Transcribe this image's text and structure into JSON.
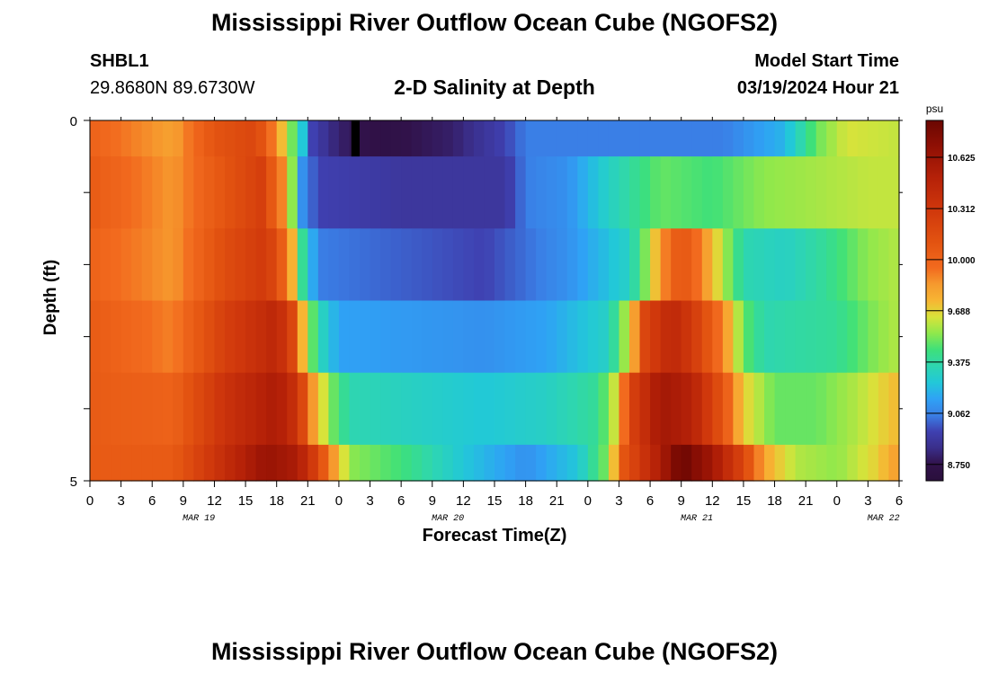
{
  "header": {
    "title": "Mississippi River Outflow Ocean Cube (NGOFS2)",
    "station": "SHBL1",
    "coords": "29.8680N  89.6730W",
    "subtitle": "2-D Salinity at Depth",
    "model_start_label": "Model Start Time",
    "model_start_value": "03/19/2024 Hour 21"
  },
  "footer": {
    "title": "Mississippi River Outflow Ocean Cube (NGOFS2)"
  },
  "chart_data": {
    "type": "heatmap",
    "title": "2-D Salinity at Depth",
    "xlabel": "Forecast Time(Z)",
    "ylabel": "Depth (ft)",
    "colorbar_label": "psu",
    "x_start_hour": 0,
    "x_end_hour": 78,
    "x_ticks": [
      "0",
      "3",
      "6",
      "9",
      "12",
      "15",
      "18",
      "21",
      "0",
      "3",
      "6",
      "9",
      "12",
      "15",
      "18",
      "21",
      "0",
      "3",
      "6",
      "9",
      "12",
      "15",
      "18",
      "21",
      "0",
      "3",
      "6"
    ],
    "day_labels": [
      {
        "label": "MAR 19",
        "hour": 10.5
      },
      {
        "label": "MAR 20",
        "hour": 34.5
      },
      {
        "label": "MAR 21",
        "hour": 58.5
      },
      {
        "label": "MAR 22",
        "hour": 76.5
      }
    ],
    "y_ticks": [
      "0",
      "5"
    ],
    "ylim": [
      0,
      5
    ],
    "colorbar_ticks": [
      "10.625",
      "10.312",
      "10.000",
      "9.688",
      "9.375",
      "9.062",
      "8.750"
    ],
    "colorbar_range": [
      8.65,
      10.85
    ],
    "colors": {
      "8.65": "#2a0f3c",
      "8.75": "#31124a",
      "8.85": "#3a2e8a",
      "8.95": "#3f40b0",
      "9.05": "#3a7fe6",
      "9.15": "#2fa2f5",
      "9.25": "#22c8d8",
      "9.35": "#2ed6b0",
      "9.45": "#3ee07a",
      "9.55": "#8fe84c",
      "9.65": "#d8e33a",
      "9.75": "#f7b533",
      "9.85": "#f69a2e",
      "9.95": "#f26a1e",
      "10.1": "#e35411",
      "10.3": "#d0380c",
      "10.5": "#b52108",
      "10.7": "#8e0f04",
      "10.85": "#6a0702"
    },
    "depth_layers": [
      {
        "depth_top": 0,
        "depth_bottom": 0.5,
        "keys": [
          {
            "h": 0,
            "v": 10.0
          },
          {
            "h": 8,
            "v": 9.82
          },
          {
            "h": 12,
            "v": 10.1
          },
          {
            "h": 16,
            "v": 10.2
          },
          {
            "h": 18,
            "v": 9.85
          },
          {
            "h": 20,
            "v": 9.4
          },
          {
            "h": 21.5,
            "v": 8.95
          },
          {
            "h": 24,
            "v": 8.8
          },
          {
            "h": 28,
            "v": 8.72
          },
          {
            "h": 35,
            "v": 8.8
          },
          {
            "h": 40,
            "v": 8.95
          },
          {
            "h": 42,
            "v": 9.05
          },
          {
            "h": 50,
            "v": 9.05
          },
          {
            "h": 61,
            "v": 9.05
          },
          {
            "h": 67,
            "v": 9.2
          },
          {
            "h": 70,
            "v": 9.5
          },
          {
            "h": 73,
            "v": 9.65
          },
          {
            "h": 78,
            "v": 9.62
          }
        ]
      },
      {
        "depth_top": 0.5,
        "depth_bottom": 1.5,
        "keys": [
          {
            "h": 0,
            "v": 10.05
          },
          {
            "h": 8,
            "v": 9.85
          },
          {
            "h": 13,
            "v": 10.1
          },
          {
            "h": 16.5,
            "v": 10.25
          },
          {
            "h": 18.5,
            "v": 9.9
          },
          {
            "h": 19.5,
            "v": 9.55
          },
          {
            "h": 20.5,
            "v": 9.1
          },
          {
            "h": 22,
            "v": 8.95
          },
          {
            "h": 30,
            "v": 8.9
          },
          {
            "h": 40,
            "v": 8.9
          },
          {
            "h": 42,
            "v": 9.05
          },
          {
            "h": 46,
            "v": 9.1
          },
          {
            "h": 50,
            "v": 9.3
          },
          {
            "h": 55,
            "v": 9.5
          },
          {
            "h": 60,
            "v": 9.45
          },
          {
            "h": 65,
            "v": 9.55
          },
          {
            "h": 70,
            "v": 9.58
          },
          {
            "h": 75,
            "v": 9.62
          },
          {
            "h": 78,
            "v": 9.62
          }
        ]
      },
      {
        "depth_top": 1.5,
        "depth_bottom": 2.5,
        "keys": [
          {
            "h": 0,
            "v": 10.0
          },
          {
            "h": 8,
            "v": 9.85
          },
          {
            "h": 13,
            "v": 10.15
          },
          {
            "h": 17,
            "v": 10.3
          },
          {
            "h": 19,
            "v": 9.95
          },
          {
            "h": 20.5,
            "v": 9.4
          },
          {
            "h": 22,
            "v": 9.05
          },
          {
            "h": 30,
            "v": 9.0
          },
          {
            "h": 38,
            "v": 8.95
          },
          {
            "h": 46,
            "v": 9.1
          },
          {
            "h": 52,
            "v": 9.3
          },
          {
            "h": 54,
            "v": 9.6
          },
          {
            "h": 55,
            "v": 9.85
          },
          {
            "h": 57,
            "v": 10.1
          },
          {
            "h": 59,
            "v": 9.9
          },
          {
            "h": 61,
            "v": 9.6
          },
          {
            "h": 63,
            "v": 9.35
          },
          {
            "h": 67,
            "v": 9.3
          },
          {
            "h": 71,
            "v": 9.4
          },
          {
            "h": 75,
            "v": 9.55
          },
          {
            "h": 78,
            "v": 9.6
          }
        ]
      },
      {
        "depth_top": 2.5,
        "depth_bottom": 3.5,
        "keys": [
          {
            "h": 0,
            "v": 10.05
          },
          {
            "h": 8,
            "v": 9.9
          },
          {
            "h": 13,
            "v": 10.25
          },
          {
            "h": 18,
            "v": 10.45
          },
          {
            "h": 19.5,
            "v": 10.2
          },
          {
            "h": 20.5,
            "v": 9.75
          },
          {
            "h": 22,
            "v": 9.35
          },
          {
            "h": 24,
            "v": 9.15
          },
          {
            "h": 38,
            "v": 9.1
          },
          {
            "h": 44,
            "v": 9.15
          },
          {
            "h": 50,
            "v": 9.3
          },
          {
            "h": 52,
            "v": 9.65
          },
          {
            "h": 53.5,
            "v": 10.2
          },
          {
            "h": 56,
            "v": 10.45
          },
          {
            "h": 58,
            "v": 10.3
          },
          {
            "h": 61,
            "v": 9.9
          },
          {
            "h": 63,
            "v": 9.5
          },
          {
            "h": 65,
            "v": 9.35
          },
          {
            "h": 72,
            "v": 9.4
          },
          {
            "h": 76,
            "v": 9.55
          },
          {
            "h": 78,
            "v": 9.6
          }
        ]
      },
      {
        "depth_top": 3.5,
        "depth_bottom": 4.5,
        "keys": [
          {
            "h": 0,
            "v": 10.05
          },
          {
            "h": 8,
            "v": 10.0
          },
          {
            "h": 13,
            "v": 10.35
          },
          {
            "h": 18,
            "v": 10.55
          },
          {
            "h": 20,
            "v": 10.35
          },
          {
            "h": 21.5,
            "v": 9.85
          },
          {
            "h": 23,
            "v": 9.55
          },
          {
            "h": 25,
            "v": 9.35
          },
          {
            "h": 38,
            "v": 9.25
          },
          {
            "h": 44,
            "v": 9.3
          },
          {
            "h": 49,
            "v": 9.4
          },
          {
            "h": 51,
            "v": 9.7
          },
          {
            "h": 52,
            "v": 10.2
          },
          {
            "h": 55,
            "v": 10.6
          },
          {
            "h": 58,
            "v": 10.5
          },
          {
            "h": 61,
            "v": 10.1
          },
          {
            "h": 63,
            "v": 9.7
          },
          {
            "h": 66,
            "v": 9.5
          },
          {
            "h": 70,
            "v": 9.5
          },
          {
            "h": 74,
            "v": 9.6
          },
          {
            "h": 78,
            "v": 9.75
          }
        ]
      },
      {
        "depth_top": 4.5,
        "depth_bottom": 5.0,
        "keys": [
          {
            "h": 0,
            "v": 10.05
          },
          {
            "h": 8,
            "v": 10.05
          },
          {
            "h": 13,
            "v": 10.4
          },
          {
            "h": 17,
            "v": 10.65
          },
          {
            "h": 20,
            "v": 10.55
          },
          {
            "h": 22,
            "v": 10.2
          },
          {
            "h": 23,
            "v": 9.95
          },
          {
            "h": 25,
            "v": 9.55
          },
          {
            "h": 30,
            "v": 9.45
          },
          {
            "h": 36,
            "v": 9.25
          },
          {
            "h": 42,
            "v": 9.1
          },
          {
            "h": 47,
            "v": 9.25
          },
          {
            "h": 50,
            "v": 9.55
          },
          {
            "h": 51.5,
            "v": 10.1
          },
          {
            "h": 55,
            "v": 10.55
          },
          {
            "h": 57,
            "v": 10.85
          },
          {
            "h": 60,
            "v": 10.6
          },
          {
            "h": 63,
            "v": 10.2
          },
          {
            "h": 65,
            "v": 9.8
          },
          {
            "h": 68,
            "v": 9.6
          },
          {
            "h": 72,
            "v": 9.55
          },
          {
            "h": 76,
            "v": 9.7
          },
          {
            "h": 78,
            "v": 9.85
          }
        ]
      }
    ]
  }
}
